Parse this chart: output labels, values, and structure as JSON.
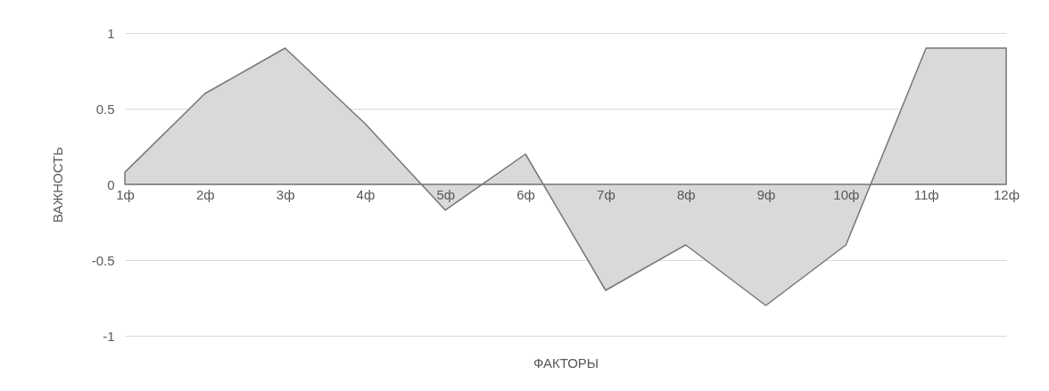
{
  "chart_data": {
    "type": "area",
    "xlabel": "ФАКТОРЫ",
    "ylabel": "ВАЖНОСТЬ",
    "categories": [
      "1ф",
      "2ф",
      "3ф",
      "4ф",
      "5ф",
      "6ф",
      "7ф",
      "8ф",
      "9ф",
      "10ф",
      "11ф",
      "12ф"
    ],
    "series": [
      {
        "color": "#d9d9d9",
        "values": [
          0.08,
          0.6,
          0.9,
          0.4,
          -0.17,
          0.2,
          -0.7,
          -0.4,
          -0.8,
          -0.4,
          0.9,
          0.9
        ]
      }
    ],
    "ylim": [
      -1,
      1
    ],
    "yticks": [
      -1,
      -0.5,
      0,
      0.5,
      1
    ],
    "grid": "y"
  }
}
